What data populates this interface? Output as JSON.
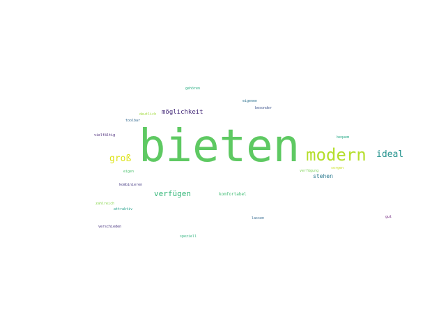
{
  "words": [
    {
      "text": "bieten",
      "color": "#5ec962"
    },
    {
      "text": "modern",
      "color": "#b5de2b"
    },
    {
      "text": "ideal",
      "color": "#21918c"
    },
    {
      "text": "groß",
      "color": "#dde318"
    },
    {
      "text": "möglichkeit",
      "color": "#472d7b"
    },
    {
      "text": "verfügen",
      "color": "#35b779"
    },
    {
      "text": "stehen",
      "color": "#2a788e"
    },
    {
      "text": "komfortabel",
      "color": "#3fbc73"
    },
    {
      "text": "gehören",
      "color": "#27ad81"
    },
    {
      "text": "eigenen",
      "color": "#2c728e"
    },
    {
      "text": "besonder",
      "color": "#3b528b"
    },
    {
      "text": "deutlich",
      "color": "#a0da39"
    },
    {
      "text": "toolbar",
      "color": "#31688e"
    },
    {
      "text": "vielfältig",
      "color": "#482878"
    },
    {
      "text": "bequem",
      "color": "#22a884"
    },
    {
      "text": "sorgen",
      "color": "#c8e020"
    },
    {
      "text": "verfügung",
      "color": "#7ad151"
    },
    {
      "text": "eigen",
      "color": "#4ac16d"
    },
    {
      "text": "kombinieren",
      "color": "#443983"
    },
    {
      "text": "zahlreich",
      "color": "#86d549"
    },
    {
      "text": "attraktiv",
      "color": "#1f9e89"
    },
    {
      "text": "lassen",
      "color": "#31688e"
    },
    {
      "text": "gut",
      "color": "#6a1b7a"
    },
    {
      "text": "verschieden",
      "color": "#46327e"
    },
    {
      "text": "speziell",
      "color": "#2db27d"
    }
  ]
}
